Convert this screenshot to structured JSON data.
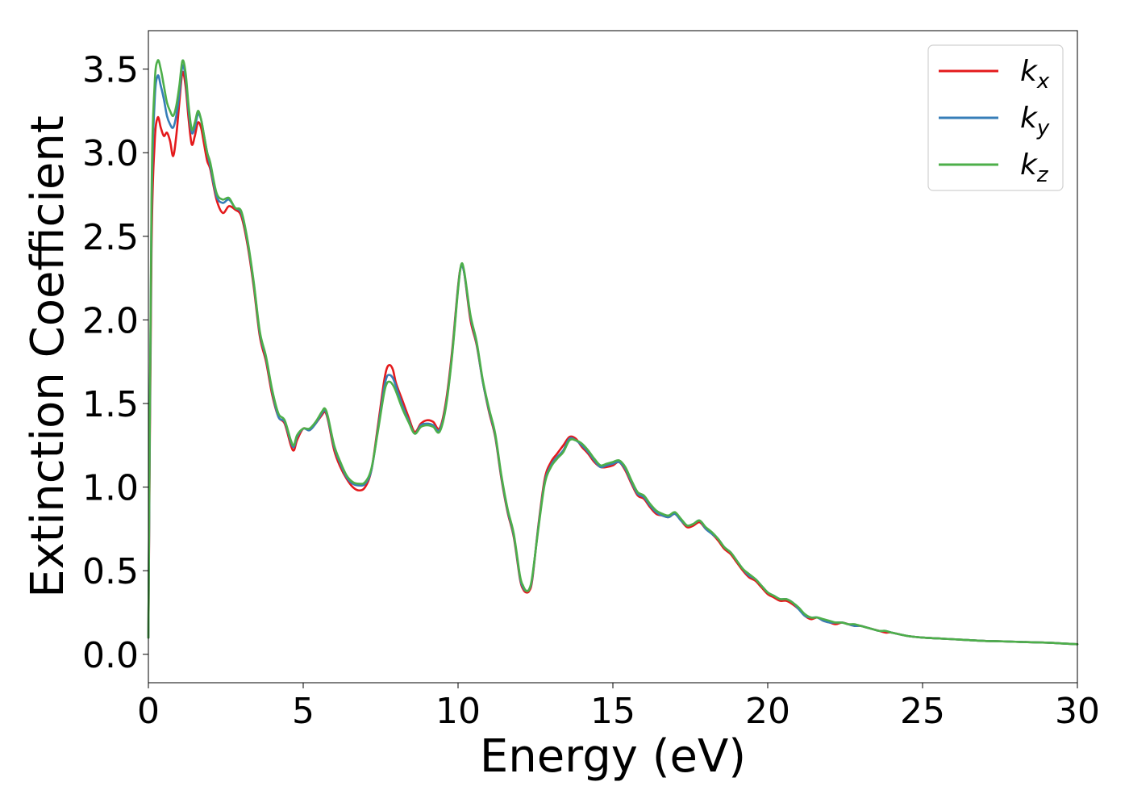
{
  "chart_data": {
    "type": "line",
    "xlabel": "Energy (eV)",
    "ylabel": "Extinction Coefficient",
    "xlim": [
      0,
      30
    ],
    "ylim": [
      -0.17,
      3.73
    ],
    "xticks": [
      0,
      5,
      10,
      15,
      20,
      25,
      30
    ],
    "xtick_labels": [
      "0",
      "5",
      "10",
      "15",
      "20",
      "25",
      "30"
    ],
    "yticks": [
      0.0,
      0.5,
      1.0,
      1.5,
      2.0,
      2.5,
      3.0,
      3.5
    ],
    "ytick_labels": [
      "0.0",
      "0.5",
      "1.0",
      "1.5",
      "2.0",
      "2.5",
      "3.0",
      "3.5"
    ],
    "grid": false,
    "legend_position": "top-right",
    "series": [
      {
        "name": "k",
        "subscript": "x",
        "color": "#e41a1c",
        "x": [
          0,
          0.1,
          0.2,
          0.3,
          0.4,
          0.5,
          0.6,
          0.7,
          0.8,
          0.9,
          1.0,
          1.1,
          1.2,
          1.3,
          1.4,
          1.5,
          1.6,
          1.7,
          1.8,
          1.9,
          2.0,
          2.2,
          2.4,
          2.6,
          2.8,
          3.0,
          3.2,
          3.4,
          3.6,
          3.8,
          4.0,
          4.2,
          4.4,
          4.6,
          4.7,
          4.8,
          5.0,
          5.2,
          5.4,
          5.6,
          5.7,
          5.8,
          6.0,
          6.2,
          6.4,
          6.6,
          6.8,
          7.0,
          7.2,
          7.4,
          7.6,
          7.7,
          7.8,
          7.9,
          8.0,
          8.2,
          8.4,
          8.6,
          8.8,
          9.0,
          9.2,
          9.4,
          9.6,
          9.8,
          10.0,
          10.1,
          10.2,
          10.4,
          10.6,
          10.8,
          11.0,
          11.2,
          11.4,
          11.6,
          11.8,
          12.0,
          12.1,
          12.2,
          12.3,
          12.4,
          12.6,
          12.8,
          13.0,
          13.2,
          13.4,
          13.6,
          13.8,
          14.0,
          14.2,
          14.4,
          14.6,
          14.8,
          15.0,
          15.2,
          15.4,
          15.6,
          15.8,
          16.0,
          16.2,
          16.4,
          16.6,
          16.8,
          17.0,
          17.2,
          17.4,
          17.6,
          17.8,
          18.0,
          18.2,
          18.4,
          18.6,
          18.8,
          19.0,
          19.2,
          19.4,
          19.6,
          19.8,
          20.0,
          20.2,
          20.4,
          20.6,
          20.8,
          21.0,
          21.2,
          21.4,
          21.6,
          21.8,
          22.0,
          22.2,
          22.4,
          22.6,
          22.8,
          23.0,
          23.2,
          23.4,
          23.6,
          23.8,
          24.0,
          24.5,
          25.0,
          25.5,
          26.0,
          26.5,
          27.0,
          27.5,
          28.0,
          28.5,
          29.0,
          29.5,
          30.0
        ],
        "values": [
          0.1,
          2.4,
          3.05,
          3.21,
          3.15,
          3.1,
          3.12,
          3.07,
          2.98,
          3.1,
          3.3,
          3.48,
          3.4,
          3.2,
          3.05,
          3.1,
          3.18,
          3.15,
          3.05,
          2.95,
          2.9,
          2.72,
          2.64,
          2.68,
          2.66,
          2.62,
          2.45,
          2.2,
          1.9,
          1.75,
          1.55,
          1.42,
          1.38,
          1.25,
          1.22,
          1.28,
          1.35,
          1.34,
          1.38,
          1.43,
          1.45,
          1.4,
          1.22,
          1.12,
          1.05,
          1.0,
          0.98,
          1.0,
          1.1,
          1.35,
          1.62,
          1.71,
          1.73,
          1.7,
          1.62,
          1.52,
          1.42,
          1.33,
          1.38,
          1.4,
          1.39,
          1.35,
          1.5,
          1.8,
          2.2,
          2.32,
          2.28,
          2.0,
          1.85,
          1.63,
          1.45,
          1.3,
          1.05,
          0.85,
          0.7,
          0.45,
          0.39,
          0.37,
          0.38,
          0.45,
          0.78,
          1.05,
          1.15,
          1.2,
          1.25,
          1.3,
          1.29,
          1.24,
          1.2,
          1.15,
          1.12,
          1.12,
          1.13,
          1.15,
          1.1,
          1.02,
          0.95,
          0.93,
          0.88,
          0.84,
          0.83,
          0.82,
          0.84,
          0.8,
          0.76,
          0.77,
          0.79,
          0.75,
          0.72,
          0.68,
          0.63,
          0.6,
          0.55,
          0.5,
          0.46,
          0.44,
          0.4,
          0.36,
          0.34,
          0.32,
          0.32,
          0.3,
          0.27,
          0.23,
          0.21,
          0.22,
          0.2,
          0.19,
          0.18,
          0.19,
          0.18,
          0.17,
          0.17,
          0.16,
          0.15,
          0.14,
          0.13,
          0.13,
          0.11,
          0.1,
          0.095,
          0.09,
          0.085,
          0.08,
          0.078,
          0.075,
          0.072,
          0.07,
          0.065,
          0.06
        ]
      },
      {
        "name": "k",
        "subscript": "y",
        "color": "#377eb8",
        "x": [
          0,
          0.1,
          0.2,
          0.3,
          0.4,
          0.5,
          0.6,
          0.7,
          0.8,
          0.9,
          1.0,
          1.1,
          1.2,
          1.3,
          1.4,
          1.5,
          1.6,
          1.7,
          1.8,
          1.9,
          2.0,
          2.2,
          2.4,
          2.6,
          2.8,
          3.0,
          3.2,
          3.4,
          3.6,
          3.8,
          4.0,
          4.2,
          4.4,
          4.6,
          4.7,
          4.8,
          5.0,
          5.2,
          5.4,
          5.6,
          5.7,
          5.8,
          6.0,
          6.2,
          6.4,
          6.6,
          6.8,
          7.0,
          7.2,
          7.4,
          7.6,
          7.7,
          7.8,
          7.9,
          8.0,
          8.2,
          8.4,
          8.6,
          8.8,
          9.0,
          9.2,
          9.4,
          9.6,
          9.8,
          10.0,
          10.1,
          10.2,
          10.4,
          10.6,
          10.8,
          11.0,
          11.2,
          11.4,
          11.6,
          11.8,
          12.0,
          12.1,
          12.2,
          12.3,
          12.4,
          12.6,
          12.8,
          13.0,
          13.2,
          13.4,
          13.6,
          13.8,
          14.0,
          14.2,
          14.4,
          14.6,
          14.8,
          15.0,
          15.2,
          15.4,
          15.6,
          15.8,
          16.0,
          16.2,
          16.4,
          16.6,
          16.8,
          17.0,
          17.2,
          17.4,
          17.6,
          17.8,
          18.0,
          18.2,
          18.4,
          18.6,
          18.8,
          19.0,
          19.2,
          19.4,
          19.6,
          19.8,
          20.0,
          20.2,
          20.4,
          20.6,
          20.8,
          21.0,
          21.2,
          21.4,
          21.6,
          21.8,
          22.0,
          22.2,
          22.4,
          22.6,
          22.8,
          23.0,
          23.2,
          23.4,
          23.6,
          23.8,
          24.0,
          24.5,
          25.0,
          25.5,
          26.0,
          26.5,
          27.0,
          27.5,
          28.0,
          28.5,
          29.0,
          29.5,
          30.0
        ],
        "values": [
          0.1,
          2.6,
          3.3,
          3.46,
          3.4,
          3.32,
          3.22,
          3.17,
          3.15,
          3.22,
          3.35,
          3.52,
          3.45,
          3.25,
          3.12,
          3.15,
          3.23,
          3.2,
          3.1,
          3.0,
          2.92,
          2.74,
          2.7,
          2.72,
          2.67,
          2.64,
          2.47,
          2.22,
          1.92,
          1.77,
          1.57,
          1.42,
          1.39,
          1.27,
          1.24,
          1.3,
          1.35,
          1.34,
          1.38,
          1.44,
          1.46,
          1.41,
          1.24,
          1.14,
          1.06,
          1.02,
          1.01,
          1.02,
          1.1,
          1.33,
          1.58,
          1.66,
          1.67,
          1.65,
          1.6,
          1.49,
          1.4,
          1.32,
          1.37,
          1.38,
          1.37,
          1.34,
          1.48,
          1.78,
          2.19,
          2.32,
          2.28,
          2.02,
          1.86,
          1.63,
          1.46,
          1.31,
          1.06,
          0.86,
          0.71,
          0.46,
          0.4,
          0.38,
          0.39,
          0.46,
          0.77,
          1.03,
          1.13,
          1.18,
          1.22,
          1.29,
          1.28,
          1.25,
          1.21,
          1.16,
          1.12,
          1.13,
          1.14,
          1.15,
          1.11,
          1.03,
          0.96,
          0.94,
          0.89,
          0.85,
          0.83,
          0.82,
          0.84,
          0.8,
          0.77,
          0.78,
          0.8,
          0.75,
          0.72,
          0.69,
          0.64,
          0.61,
          0.56,
          0.51,
          0.47,
          0.45,
          0.41,
          0.37,
          0.35,
          0.33,
          0.33,
          0.31,
          0.27,
          0.23,
          0.22,
          0.22,
          0.2,
          0.19,
          0.19,
          0.19,
          0.18,
          0.17,
          0.17,
          0.16,
          0.15,
          0.14,
          0.14,
          0.13,
          0.11,
          0.1,
          0.095,
          0.09,
          0.085,
          0.08,
          0.078,
          0.075,
          0.072,
          0.07,
          0.065,
          0.06
        ]
      },
      {
        "name": "k",
        "subscript": "z",
        "color": "#4daf4a",
        "x": [
          0,
          0.1,
          0.2,
          0.3,
          0.4,
          0.5,
          0.6,
          0.7,
          0.8,
          0.9,
          1.0,
          1.1,
          1.2,
          1.3,
          1.4,
          1.5,
          1.6,
          1.7,
          1.8,
          1.9,
          2.0,
          2.2,
          2.4,
          2.6,
          2.8,
          3.0,
          3.2,
          3.4,
          3.6,
          3.8,
          4.0,
          4.2,
          4.4,
          4.6,
          4.7,
          4.8,
          5.0,
          5.2,
          5.4,
          5.6,
          5.7,
          5.8,
          6.0,
          6.2,
          6.4,
          6.6,
          6.8,
          7.0,
          7.2,
          7.4,
          7.6,
          7.7,
          7.8,
          7.9,
          8.0,
          8.2,
          8.4,
          8.6,
          8.8,
          9.0,
          9.2,
          9.4,
          9.6,
          9.8,
          10.0,
          10.1,
          10.2,
          10.4,
          10.6,
          10.8,
          11.0,
          11.2,
          11.4,
          11.6,
          11.8,
          12.0,
          12.1,
          12.2,
          12.3,
          12.4,
          12.6,
          12.8,
          13.0,
          13.2,
          13.4,
          13.6,
          13.8,
          14.0,
          14.2,
          14.4,
          14.6,
          14.8,
          15.0,
          15.2,
          15.4,
          15.6,
          15.8,
          16.0,
          16.2,
          16.4,
          16.6,
          16.8,
          17.0,
          17.2,
          17.4,
          17.6,
          17.8,
          18.0,
          18.2,
          18.4,
          18.6,
          18.8,
          19.0,
          19.2,
          19.4,
          19.6,
          19.8,
          20.0,
          20.2,
          20.4,
          20.6,
          20.8,
          21.0,
          21.2,
          21.4,
          21.6,
          21.8,
          22.0,
          22.2,
          22.4,
          22.6,
          22.8,
          23.0,
          23.2,
          23.4,
          23.6,
          23.8,
          24.0,
          24.5,
          25.0,
          25.5,
          26.0,
          26.5,
          27.0,
          27.5,
          28.0,
          28.5,
          29.0,
          29.5,
          30.0
        ],
        "values": [
          0.1,
          2.7,
          3.4,
          3.55,
          3.5,
          3.4,
          3.3,
          3.25,
          3.22,
          3.28,
          3.4,
          3.55,
          3.48,
          3.28,
          3.14,
          3.18,
          3.25,
          3.2,
          3.1,
          3.0,
          2.94,
          2.76,
          2.72,
          2.73,
          2.67,
          2.65,
          2.48,
          2.23,
          1.93,
          1.78,
          1.58,
          1.44,
          1.4,
          1.28,
          1.25,
          1.31,
          1.35,
          1.35,
          1.39,
          1.45,
          1.47,
          1.42,
          1.25,
          1.15,
          1.07,
          1.03,
          1.02,
          1.03,
          1.11,
          1.32,
          1.55,
          1.62,
          1.63,
          1.61,
          1.57,
          1.47,
          1.39,
          1.32,
          1.36,
          1.37,
          1.36,
          1.33,
          1.47,
          1.77,
          2.18,
          2.33,
          2.29,
          2.03,
          1.87,
          1.64,
          1.47,
          1.32,
          1.07,
          0.87,
          0.72,
          0.47,
          0.41,
          0.38,
          0.39,
          0.47,
          0.76,
          1.02,
          1.12,
          1.17,
          1.21,
          1.28,
          1.28,
          1.26,
          1.22,
          1.17,
          1.13,
          1.14,
          1.15,
          1.16,
          1.12,
          1.04,
          0.97,
          0.95,
          0.9,
          0.86,
          0.84,
          0.83,
          0.85,
          0.81,
          0.77,
          0.78,
          0.8,
          0.76,
          0.73,
          0.69,
          0.64,
          0.61,
          0.56,
          0.51,
          0.48,
          0.45,
          0.41,
          0.37,
          0.35,
          0.33,
          0.33,
          0.31,
          0.28,
          0.24,
          0.22,
          0.22,
          0.21,
          0.2,
          0.19,
          0.19,
          0.18,
          0.18,
          0.17,
          0.16,
          0.15,
          0.14,
          0.14,
          0.13,
          0.11,
          0.1,
          0.095,
          0.09,
          0.085,
          0.08,
          0.078,
          0.075,
          0.072,
          0.07,
          0.065,
          0.06
        ]
      }
    ]
  }
}
